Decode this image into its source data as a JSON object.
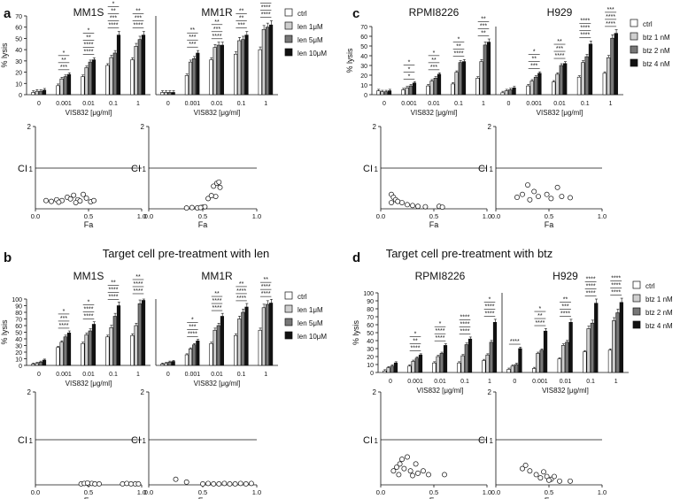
{
  "figure": {
    "bar_legend": {
      "len": [
        "ctrl",
        "len 1μM",
        "len 5μM",
        "len 10μM"
      ],
      "btz": [
        "ctrl",
        "btz 1 nM",
        "btz 2 nM",
        "btz 4 nM"
      ]
    },
    "bar_colors": [
      "#ffffff",
      "#cfcfcf",
      "#777777",
      "#111111"
    ],
    "panels": [
      {
        "id": "a",
        "label": "a",
        "heading": "",
        "legend": "len",
        "cell_lines": [
          "MM1S",
          "MM1R"
        ],
        "ylabel": "% lysis",
        "xlabel": "VIS832 [μg/ml]",
        "categories": [
          "0",
          "0.001",
          "0.01",
          "0.1",
          "1"
        ],
        "yticks": [
          0,
          10,
          20,
          30,
          40,
          50,
          60,
          70
        ],
        "ymax": 70,
        "bars": [
          [
            [
              2,
              3,
              3,
              4
            ],
            [
              8,
              14,
              16,
              18
            ],
            [
              16,
              24,
              29,
              31
            ],
            [
              26,
              33,
              37,
              53
            ],
            [
              31,
              43,
              49,
              53
            ]
          ],
          [
            [
              2,
              2,
              2,
              2
            ],
            [
              17,
              29,
              32,
              37
            ],
            [
              31,
              42,
              44,
              44
            ],
            [
              36,
              48,
              49,
              53
            ],
            [
              40,
              58,
              60,
              62
            ]
          ]
        ],
        "stars": [
          [
            [],
            [
              "*",
              "**",
              "***"
            ],
            [
              "*",
              "**",
              "****",
              "****"
            ],
            [
              "*",
              "**",
              "***",
              "****"
            ],
            [
              "**",
              "***",
              "****"
            ]
          ],
          [
            [],
            [
              "**",
              "***",
              "***"
            ],
            [
              "**",
              "***",
              "****"
            ],
            [
              "**",
              "**",
              "***"
            ],
            [
              "***",
              "****",
              "****"
            ]
          ]
        ],
        "ci_xticks": [
          "0.0",
          "0.5",
          "1.0"
        ],
        "ci_ymax": "2",
        "ci_line": "1",
        "ci_label": "CI",
        "fa_label": "Fa",
        "ci_points": [
          [
            [
              0.1,
              0.2
            ],
            [
              0.15,
              0.18
            ],
            [
              0.2,
              0.22
            ],
            [
              0.25,
              0.2
            ],
            [
              0.3,
              0.28
            ],
            [
              0.33,
              0.24
            ],
            [
              0.36,
              0.33
            ],
            [
              0.4,
              0.22
            ],
            [
              0.45,
              0.35
            ],
            [
              0.48,
              0.26
            ],
            [
              0.52,
              0.17
            ],
            [
              0.55,
              0.2
            ],
            [
              0.42,
              0.19
            ],
            [
              0.22,
              0.16
            ],
            [
              0.38,
              0.15
            ]
          ],
          [
            [
              0.35,
              0.02
            ],
            [
              0.4,
              0.03
            ],
            [
              0.45,
              0.02
            ],
            [
              0.5,
              0.04
            ],
            [
              0.55,
              0.25
            ],
            [
              0.58,
              0.32
            ],
            [
              0.62,
              0.3
            ],
            [
              0.6,
              0.55
            ],
            [
              0.63,
              0.62
            ],
            [
              0.65,
              0.65
            ],
            [
              0.66,
              0.52
            ],
            [
              0.52,
              0.05
            ],
            [
              0.48,
              0.03
            ]
          ]
        ]
      },
      {
        "id": "b",
        "label": "b",
        "heading": "Target cell pre-treatment with len",
        "legend": "len",
        "cell_lines": [
          "MM1S",
          "MM1R"
        ],
        "ylabel": "% lysis",
        "xlabel": "VIS832 [μg/ml]",
        "categories": [
          "0",
          "0.001",
          "0.01",
          "0.1",
          "1"
        ],
        "yticks": [
          0,
          10,
          20,
          30,
          40,
          50,
          60,
          70,
          80,
          90,
          100
        ],
        "ymax": 100,
        "bars": [
          [
            [
              2,
              3,
              5,
              8
            ],
            [
              27,
              35,
              43,
              49
            ],
            [
              33,
              46,
              52,
              62
            ],
            [
              43,
              57,
              74,
              90
            ],
            [
              45,
              60,
              93,
              98
            ]
          ],
          [
            [
              2,
              3,
              5,
              6
            ],
            [
              16,
              25,
              31,
              37
            ],
            [
              33,
              53,
              60,
              74
            ],
            [
              45,
              70,
              80,
              88
            ],
            [
              53,
              87,
              92,
              94
            ]
          ]
        ],
        "stars": [
          [
            [],
            [
              "*",
              "***",
              "****"
            ],
            [
              "*",
              "****",
              "****"
            ],
            [
              "**",
              "****",
              "****"
            ],
            [
              "**",
              "****",
              "****"
            ]
          ],
          [
            [],
            [
              "*",
              "***",
              "****"
            ],
            [
              "**",
              "****",
              "****"
            ],
            [
              "**",
              "****",
              "****"
            ],
            [
              "**",
              "****",
              "****"
            ]
          ]
        ],
        "ci_xticks": [
          "0.0",
          "0.5",
          "1.0"
        ],
        "ci_ymax": "2",
        "ci_line": "1",
        "ci_label": "CI",
        "fa_label": "Fa",
        "ci_points": [
          [
            [
              0.43,
              0.02
            ],
            [
              0.46,
              0.03
            ],
            [
              0.5,
              0.02
            ],
            [
              0.53,
              0.03
            ],
            [
              0.56,
              0.02
            ],
            [
              0.6,
              0.02
            ],
            [
              0.82,
              0.02
            ],
            [
              0.86,
              0.03
            ],
            [
              0.9,
              0.02
            ],
            [
              0.94,
              0.02
            ],
            [
              0.97,
              0.02
            ],
            [
              0.49,
              0.04
            ]
          ],
          [
            [
              0.25,
              0.12
            ],
            [
              0.35,
              0.06
            ],
            [
              0.5,
              0.02
            ],
            [
              0.55,
              0.03
            ],
            [
              0.6,
              0.02
            ],
            [
              0.65,
              0.02
            ],
            [
              0.7,
              0.03
            ],
            [
              0.75,
              0.02
            ],
            [
              0.8,
              0.02
            ],
            [
              0.85,
              0.03
            ],
            [
              0.9,
              0.02
            ],
            [
              0.95,
              0.03
            ]
          ]
        ]
      },
      {
        "id": "c",
        "label": "c",
        "heading": "",
        "legend": "btz",
        "cell_lines": [
          "RPMI8226",
          "H929"
        ],
        "ylabel": "% lysis",
        "xlabel": "VIS832 [μg/ml]",
        "categories": [
          "0",
          "0.001",
          "0.01",
          "0.1",
          "1"
        ],
        "yticks": [
          0,
          10,
          20,
          30,
          40,
          50,
          60,
          70
        ],
        "ymax": 70,
        "bars": [
          [
            [
              4,
              3,
              3,
              4
            ],
            [
              5,
              7,
              9,
              12
            ],
            [
              9,
              14,
              17,
              21
            ],
            [
              11,
              23,
              33,
              34
            ],
            [
              17,
              34,
              51,
              54
            ]
          ],
          [
            [
              2,
              4,
              5,
              7
            ],
            [
              9,
              14,
              18,
              22
            ],
            [
              13,
              21,
              30,
              32
            ],
            [
              18,
              33,
              39,
              52
            ],
            [
              22,
              38,
              58,
              63
            ]
          ]
        ],
        "stars": [
          [
            [],
            [
              "*",
              "*",
              "*"
            ],
            [
              "*",
              "**",
              "***"
            ],
            [
              "*",
              "**",
              "****"
            ],
            [
              "**",
              "***",
              "**"
            ]
          ],
          [
            [],
            [
              "*",
              "**",
              "***"
            ],
            [
              "**",
              "***",
              "****"
            ],
            [
              "****",
              "****",
              "****"
            ],
            [
              "***",
              "****",
              "****"
            ]
          ]
        ],
        "ci_xticks": [
          "0.0",
          "0.5",
          "1.0"
        ],
        "ci_ymax": "2",
        "ci_line": "1",
        "ci_label": "CI",
        "fa_label": "Fa",
        "ci_points": [
          [
            [
              0.1,
              0.35
            ],
            [
              0.12,
              0.28
            ],
            [
              0.14,
              0.22
            ],
            [
              0.16,
              0.18
            ],
            [
              0.2,
              0.15
            ],
            [
              0.25,
              0.1
            ],
            [
              0.3,
              0.08
            ],
            [
              0.35,
              0.06
            ],
            [
              0.42,
              0.05
            ],
            [
              0.55,
              0.06
            ],
            [
              0.58,
              0.04
            ],
            [
              0.1,
              0.15
            ]
          ],
          [
            [
              0.2,
              0.28
            ],
            [
              0.25,
              0.35
            ],
            [
              0.3,
              0.58
            ],
            [
              0.36,
              0.42
            ],
            [
              0.4,
              0.3
            ],
            [
              0.48,
              0.35
            ],
            [
              0.52,
              0.25
            ],
            [
              0.58,
              0.52
            ],
            [
              0.62,
              0.3
            ],
            [
              0.7,
              0.27
            ],
            [
              0.32,
              0.22
            ]
          ]
        ]
      },
      {
        "id": "d",
        "label": "d",
        "heading": "Target cell pre-treatment with btz",
        "legend": "btz",
        "cell_lines": [
          "RPMI8226",
          "H929"
        ],
        "ylabel": "% lysis",
        "xlabel": "VIS832 [μg/ml]",
        "categories": [
          "0",
          "0.001",
          "0.01",
          "0.1",
          "1"
        ],
        "yticks": [
          0,
          10,
          20,
          30,
          40,
          50,
          60,
          70,
          80,
          90,
          100
        ],
        "ymax": 100,
        "bars": [
          [
            [
              2,
              6,
              8,
              12
            ],
            [
              8,
              14,
              18,
              22
            ],
            [
              12,
              20,
              24,
              34
            ],
            [
              12,
              21,
              35,
              42
            ],
            [
              15,
              22,
              38,
              63
            ]
          ],
          [
            [
              4,
              8,
              10,
              30
            ],
            [
              5,
              24,
              28,
              52
            ],
            [
              17,
              34,
              38,
              63
            ],
            [
              26,
              55,
              62,
              87
            ],
            [
              28,
              65,
              75,
              88
            ]
          ]
        ],
        "stars": [
          [
            [],
            [
              "*",
              "**",
              "****"
            ],
            [
              "*",
              "****",
              "****"
            ],
            [
              "****",
              "****",
              "****"
            ],
            [
              "*",
              "****",
              "****"
            ]
          ],
          [
            [
              "****"
            ],
            [
              "*",
              "**",
              "****"
            ],
            [
              "**",
              "***",
              "****"
            ],
            [
              "****",
              "****",
              "****"
            ],
            [
              "****",
              "****",
              "****"
            ]
          ]
        ],
        "ci_xticks": [
          "0.0",
          "0.5",
          "1.0"
        ],
        "ci_ymax": "2",
        "ci_line": "1",
        "ci_label": "CI",
        "fa_label": "Fa",
        "ci_points": [
          [
            [
              0.12,
              0.3
            ],
            [
              0.15,
              0.38
            ],
            [
              0.18,
              0.45
            ],
            [
              0.2,
              0.55
            ],
            [
              0.22,
              0.35
            ],
            [
              0.25,
              0.6
            ],
            [
              0.28,
              0.3
            ],
            [
              0.3,
              0.2
            ],
            [
              0.33,
              0.45
            ],
            [
              0.35,
              0.25
            ],
            [
              0.4,
              0.3
            ],
            [
              0.45,
              0.22
            ],
            [
              0.6,
              0.22
            ],
            [
              0.17,
              0.22
            ]
          ],
          [
            [
              0.25,
              0.35
            ],
            [
              0.28,
              0.42
            ],
            [
              0.32,
              0.3
            ],
            [
              0.38,
              0.22
            ],
            [
              0.42,
              0.15
            ],
            [
              0.45,
              0.28
            ],
            [
              0.48,
              0.18
            ],
            [
              0.52,
              0.12
            ],
            [
              0.55,
              0.18
            ],
            [
              0.6,
              0.08
            ],
            [
              0.7,
              0.08
            ],
            [
              0.5,
              0.1
            ]
          ]
        ]
      }
    ]
  }
}
